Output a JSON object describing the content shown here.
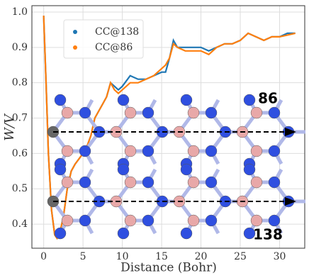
{
  "chart_data": {
    "type": "line",
    "xlabel": "Distance (Bohr)",
    "ylabel": "W/V",
    "x": [
      0,
      0.3,
      0.6,
      1,
      1.4,
      1.7,
      2,
      2.5,
      3,
      3.5,
      4,
      5,
      5.5,
      6,
      6.5,
      7,
      7.5,
      8,
      8.5,
      9,
      9.5,
      10,
      11,
      12,
      13,
      14,
      15,
      15.5,
      16,
      16.5,
      17,
      18,
      19,
      20,
      21,
      22,
      23,
      24,
      25,
      26,
      27,
      28,
      29,
      30,
      31,
      32
    ],
    "series": [
      {
        "name": "CC@138",
        "color": "#1f77b4",
        "values": [
          0.99,
          0.8,
          0.6,
          0.44,
          0.37,
          0.36,
          0.37,
          0.42,
          0.5,
          0.55,
          0.57,
          0.6,
          0.62,
          0.65,
          0.7,
          0.72,
          0.74,
          0.76,
          0.8,
          0.79,
          0.78,
          0.79,
          0.82,
          0.81,
          0.81,
          0.82,
          0.83,
          0.83,
          0.87,
          0.92,
          0.9,
          0.9,
          0.9,
          0.9,
          0.89,
          0.9,
          0.91,
          0.91,
          0.92,
          0.94,
          0.93,
          0.92,
          0.93,
          0.93,
          0.94,
          0.94
        ]
      },
      {
        "name": "CC@86",
        "color": "#ff7f0e",
        "values": [
          0.99,
          0.8,
          0.6,
          0.44,
          0.37,
          0.36,
          0.37,
          0.42,
          0.5,
          0.55,
          0.57,
          0.6,
          0.62,
          0.65,
          0.7,
          0.72,
          0.74,
          0.76,
          0.8,
          0.78,
          0.77,
          0.78,
          0.8,
          0.8,
          0.81,
          0.82,
          0.84,
          0.85,
          0.87,
          0.91,
          0.9,
          0.89,
          0.89,
          0.89,
          0.88,
          0.9,
          0.91,
          0.91,
          0.92,
          0.94,
          0.93,
          0.92,
          0.93,
          0.93,
          0.935,
          0.94
        ]
      }
    ],
    "xlim": [
      -1.5,
      33.2
    ],
    "xticks": [
      0,
      5,
      10,
      15,
      20,
      25,
      30
    ],
    "ylim": [
      0.332,
      1.018
    ],
    "yticks": [
      0.4,
      0.5,
      0.6,
      0.7,
      0.8,
      0.9,
      {
        "value": 1,
        "label": "1.0"
      }
    ],
    "grid": true,
    "legend": "upper left",
    "annotations": [
      "86",
      "138"
    ]
  }
}
